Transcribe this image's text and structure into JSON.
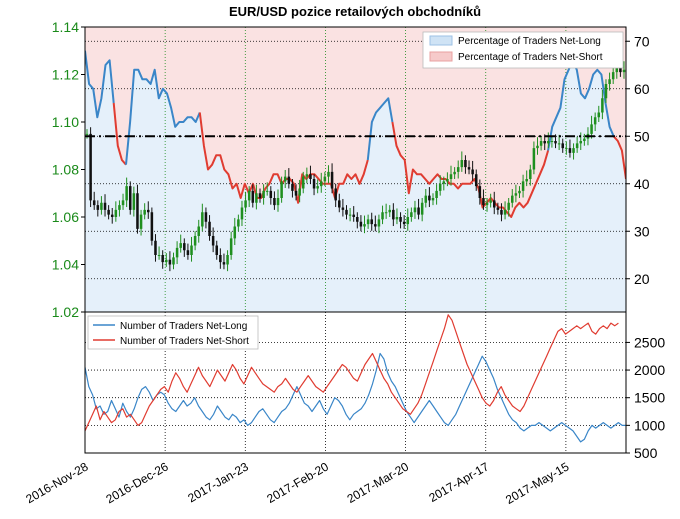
{
  "chart_data": [
    {
      "type": "line",
      "title": "EUR/USD pozice retailových obchodníků",
      "x_tick_labels": [
        "2016-Nov-28",
        "2016-Dec-26",
        "2017-Jan-23",
        "2017-Feb-20",
        "2017-Mar-20",
        "2017-Apr-17",
        "2017-May-15"
      ],
      "x_range": [
        "2016-11-28",
        "2017-06-05"
      ],
      "left_axis": {
        "ticks": [
          "1.02",
          "1.04",
          "1.06",
          "1.08",
          "1.10",
          "1.12",
          "1.14"
        ],
        "range": [
          1.02,
          1.14
        ],
        "color": "#1a8a1a"
      },
      "right_axis": {
        "ticks": [
          "20",
          "30",
          "40",
          "50",
          "60",
          "70"
        ],
        "range": [
          13,
          73
        ]
      },
      "reference_line": {
        "value": 50,
        "axis": "right",
        "style": "dash-dot",
        "color": "#000000"
      },
      "legend": {
        "placement": "top-right",
        "entries": [
          {
            "label": "Percentage of Traders Net-Long",
            "color": "#cfe3f5"
          },
          {
            "label": "Percentage of Traders Net-Short",
            "color": "#f6caca"
          }
        ]
      },
      "grid": true,
      "candles_close": [
        1.095,
        1.067,
        1.065,
        1.063,
        1.066,
        1.063,
        1.061,
        1.06,
        1.063,
        1.065,
        1.067,
        1.073,
        1.063,
        1.07,
        1.055,
        1.061,
        1.063,
        1.062,
        1.05,
        1.044,
        1.044,
        1.041,
        1.042,
        1.04,
        1.043,
        1.047,
        1.049,
        1.046,
        1.044,
        1.048,
        1.052,
        1.056,
        1.062,
        1.058,
        1.052,
        1.048,
        1.044,
        1.041,
        1.04,
        1.044,
        1.051,
        1.056,
        1.059,
        1.064,
        1.067,
        1.071,
        1.066,
        1.07,
        1.068,
        1.071,
        1.071,
        1.068,
        1.065,
        1.068,
        1.075,
        1.077,
        1.074,
        1.071,
        1.069,
        1.072,
        1.077,
        1.078,
        1.076,
        1.072,
        1.073,
        1.075,
        1.077,
        1.079,
        1.072,
        1.067,
        1.064,
        1.063,
        1.061,
        1.061,
        1.06,
        1.058,
        1.056,
        1.057,
        1.059,
        1.057,
        1.056,
        1.059,
        1.062,
        1.062,
        1.063,
        1.059,
        1.06,
        1.058,
        1.057,
        1.06,
        1.062,
        1.064,
        1.061,
        1.066,
        1.069,
        1.067,
        1.068,
        1.071,
        1.074,
        1.075,
        1.076,
        1.078,
        1.079,
        1.081,
        1.084,
        1.081,
        1.08,
        1.078,
        1.073,
        1.068,
        1.065,
        1.066,
        1.067,
        1.064,
        1.063,
        1.061,
        1.063,
        1.066,
        1.069,
        1.07,
        1.071,
        1.075,
        1.076,
        1.08,
        1.089,
        1.09,
        1.092,
        1.091,
        1.092,
        1.092,
        1.091,
        1.091,
        1.089,
        1.089,
        1.087,
        1.089,
        1.091,
        1.092,
        1.093,
        1.095,
        1.099,
        1.102,
        1.104,
        1.11,
        1.116,
        1.118,
        1.121,
        1.124,
        1.121,
        1.122
      ],
      "series": [
        {
          "axis": "right",
          "color": "#3a86c8",
          "values": [
            68,
            61,
            60,
            54,
            58,
            65,
            66,
            57,
            48,
            45,
            44,
            53,
            64,
            64,
            62,
            62,
            61,
            64,
            58,
            60,
            59,
            56,
            52,
            53,
            53,
            54,
            54,
            53,
            55,
            48,
            43,
            44,
            46,
            46,
            43,
            42,
            39,
            40,
            37,
            40,
            38,
            40,
            37,
            37,
            39,
            40,
            42,
            42,
            40,
            41,
            41,
            40,
            36,
            42,
            41,
            42,
            42,
            41,
            40,
            40,
            40,
            37,
            40,
            40,
            42,
            41,
            42,
            40,
            42,
            45,
            53,
            55,
            56,
            57,
            58,
            53,
            48,
            46,
            45,
            38,
            43,
            42,
            42,
            41,
            40,
            41,
            42,
            41,
            41,
            40,
            40,
            39,
            40,
            40,
            40,
            41,
            39,
            35,
            36,
            37,
            36,
            35,
            35,
            34,
            33,
            35,
            36,
            35,
            36,
            38,
            40,
            42,
            44,
            47,
            52,
            54,
            56,
            62,
            64,
            66,
            64,
            59,
            58,
            60,
            63,
            64,
            63,
            57,
            52,
            50,
            49,
            47,
            41
          ]
        },
        {
          "axis": "right",
          "color": "#e03c31",
          "values": [
            32,
            39,
            40,
            46,
            42,
            35,
            34,
            43,
            52,
            55,
            56,
            47,
            36,
            36,
            38,
            38,
            39,
            36,
            42,
            40,
            41,
            44,
            48,
            47,
            47,
            46,
            46,
            47,
            45,
            52,
            57,
            56,
            54,
            54,
            57,
            58,
            61,
            60,
            63,
            60,
            62,
            60,
            63,
            63,
            61,
            60,
            58,
            58,
            60,
            59,
            59,
            60,
            64,
            58,
            59,
            58,
            58,
            59,
            60,
            60,
            60,
            63,
            60,
            60,
            58,
            59,
            58,
            60,
            58,
            55,
            47,
            45,
            44,
            43,
            42,
            47,
            52,
            54,
            55,
            62,
            57,
            58,
            58,
            59,
            60,
            59,
            58,
            59,
            59,
            60,
            60,
            61,
            60,
            60,
            60,
            59,
            61,
            65,
            64,
            63,
            64,
            65,
            65,
            66,
            67,
            65,
            64,
            65,
            64,
            62,
            60,
            58,
            56,
            53,
            48,
            46,
            44,
            38,
            36,
            34,
            36,
            41,
            42,
            40,
            37,
            36,
            37,
            43,
            48,
            50,
            51,
            53,
            59
          ]
        }
      ]
    },
    {
      "type": "line",
      "y_axis": {
        "ticks": [
          "500",
          "1000",
          "1500",
          "2000",
          "2500"
        ],
        "range": [
          500,
          3050
        ]
      },
      "legend": {
        "placement": "top-left",
        "entries": [
          {
            "label": "Number of Traders Net-Long",
            "color": "#3a86c8"
          },
          {
            "label": "Number of Traders Net-Short",
            "color": "#e03c31"
          }
        ]
      },
      "grid": true,
      "series": [
        {
          "name": "Number of Traders Net-Long",
          "color": "#3a86c8",
          "values": [
            2050,
            1700,
            1550,
            1300,
            1350,
            1200,
            1250,
            1450,
            1300,
            1150,
            1400,
            1250,
            1150,
            1300,
            1500,
            1650,
            1700,
            1600,
            1450,
            1550,
            1600,
            1550,
            1400,
            1300,
            1250,
            1350,
            1450,
            1350,
            1400,
            1500,
            1350,
            1250,
            1150,
            1100,
            1200,
            1350,
            1250,
            1150,
            1100,
            1200,
            1150,
            1050,
            1100,
            1000,
            1050,
            1150,
            1250,
            1300,
            1200,
            1100,
            1050,
            1150,
            1250,
            1300,
            1400,
            1550,
            1700,
            1550,
            1400,
            1350,
            1250,
            1350,
            1450,
            1300,
            1200,
            1350,
            1500,
            1450,
            1350,
            1200,
            1100,
            1200,
            1250,
            1300,
            1400,
            1550,
            1750,
            2000,
            2300,
            2200,
            1950,
            1800,
            1700,
            1550,
            1400,
            1250,
            1150,
            1050,
            1150,
            1250,
            1350,
            1450,
            1350,
            1250,
            1150,
            1050,
            1000,
            1100,
            1200,
            1350,
            1500,
            1650,
            1800,
            1950,
            2100,
            2250,
            2150,
            2000,
            1850,
            1650,
            1500,
            1350,
            1200,
            1100,
            1050,
            950,
            900,
            950,
            1000,
            1000,
            1050,
            1000,
            950,
            900,
            950,
            1000,
            1050,
            1000,
            950,
            900,
            800,
            700,
            750,
            900,
            1000,
            950,
            1000,
            1050,
            1000,
            950,
            1000,
            1050,
            1000,
            1000
          ]
        },
        {
          "name": "Number of Traders Net-Short",
          "color": "#e03c31",
          "values": [
            900,
            1050,
            1200,
            1350,
            1100,
            1250,
            1150,
            1050,
            1100,
            1250,
            1300,
            1150,
            1200,
            1100,
            1000,
            1050,
            1200,
            1350,
            1450,
            1550,
            1650,
            1700,
            1600,
            1800,
            1950,
            1850,
            1700,
            1600,
            1750,
            1900,
            2050,
            1900,
            1800,
            1700,
            1850,
            2000,
            1900,
            1800,
            1950,
            2100,
            2000,
            1850,
            1750,
            1900,
            2050,
            1950,
            1850,
            1750,
            1700,
            1650,
            1600,
            1700,
            1750,
            1850,
            1750,
            1650,
            1600,
            1700,
            1800,
            1900,
            1800,
            1700,
            1650,
            1600,
            1700,
            1800,
            1900,
            2000,
            2100,
            2050,
            1950,
            1850,
            1800,
            1950,
            2100,
            2200,
            2300,
            2150,
            2000,
            1850,
            1750,
            1600,
            1500,
            1400,
            1300,
            1250,
            1200,
            1300,
            1400,
            1550,
            1750,
            1950,
            2150,
            2350,
            2550,
            2750,
            3000,
            2900,
            2700,
            2500,
            2300,
            2100,
            1950,
            1800,
            1650,
            1500,
            1400,
            1350,
            1450,
            1600,
            1700,
            1550,
            1450,
            1350,
            1300,
            1250,
            1350,
            1500,
            1650,
            1800,
            1950,
            2100,
            2250,
            2400,
            2550,
            2700,
            2750,
            2650,
            2700,
            2750,
            2800,
            2750,
            2800,
            2850,
            2700,
            2650,
            2750,
            2800,
            2750,
            2850,
            2800,
            2850
          ]
        }
      ]
    }
  ]
}
